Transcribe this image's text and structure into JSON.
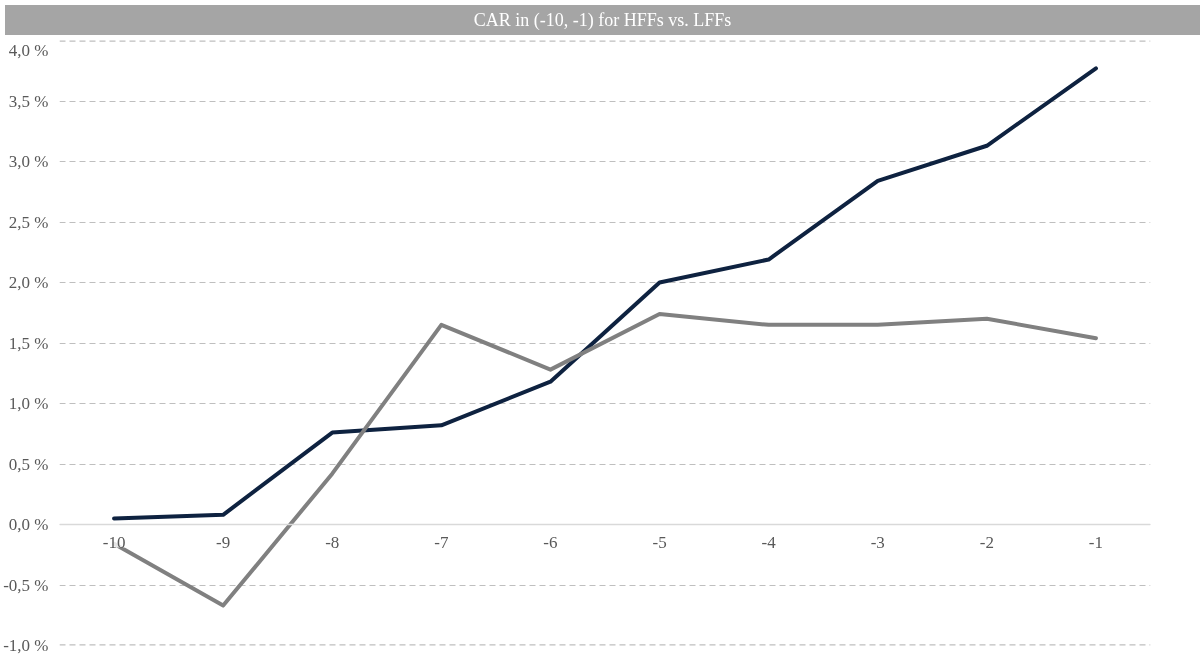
{
  "chart_data": {
    "type": "line",
    "title": "CAR in (-10, -1) for HFFs vs. LFFs",
    "categories": [
      "-10",
      "-9",
      "-8",
      "-7",
      "-6",
      "-5",
      "-4",
      "-3",
      "-2",
      "-1"
    ],
    "series": [
      {
        "color": "#0e2240",
        "values": [
          0.05,
          0.08,
          0.76,
          0.82,
          1.18,
          2.0,
          2.19,
          2.84,
          3.13,
          3.77
        ]
      },
      {
        "color": "#808080",
        "values": [
          -0.16,
          -0.67,
          0.42,
          1.65,
          1.28,
          1.74,
          1.65,
          1.65,
          1.7,
          1.54
        ]
      }
    ],
    "ylim": [
      -1.0,
      4.0
    ],
    "yticks": [
      {
        "value": -1.0,
        "label": "-1,0 %"
      },
      {
        "value": -0.5,
        "label": "-0,5 %"
      },
      {
        "value": 0.0,
        "label": "0,0 %"
      },
      {
        "value": 0.5,
        "label": "0,5 %"
      },
      {
        "value": 1.0,
        "label": "1,0 %"
      },
      {
        "value": 1.5,
        "label": "1,5 %"
      },
      {
        "value": 2.0,
        "label": "2,0 %"
      },
      {
        "value": 2.5,
        "label": "2,5 %"
      },
      {
        "value": 3.0,
        "label": "3,0 %"
      },
      {
        "value": 3.5,
        "label": "3,5 %"
      },
      {
        "value": 4.0,
        "label": "4,0 %"
      }
    ],
    "grid": "y",
    "marker": "none",
    "line_style": "solid"
  }
}
